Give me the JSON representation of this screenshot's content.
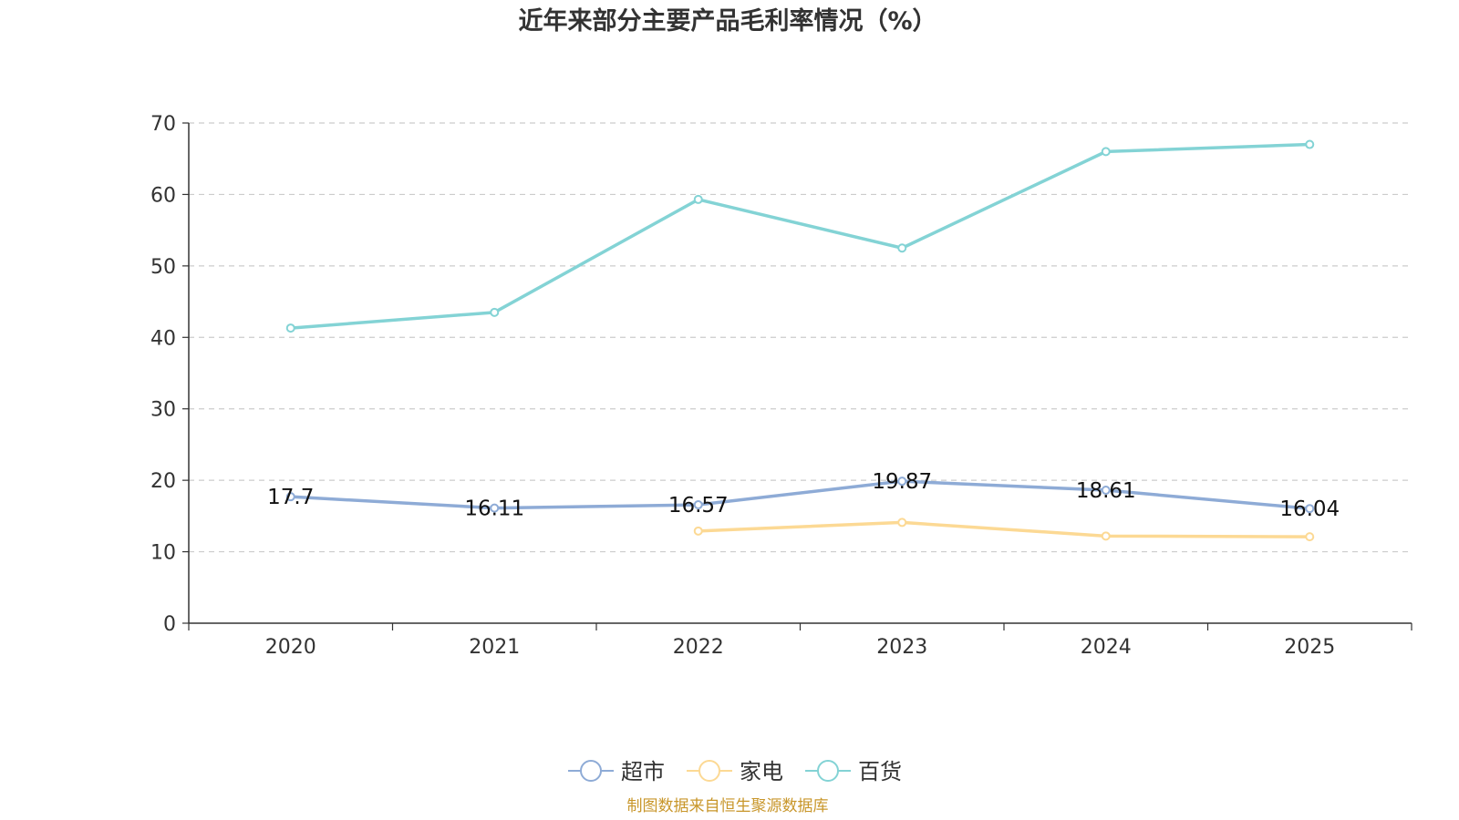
{
  "chart_data": {
    "type": "line",
    "title": "近年来部分主要产品毛利率情况（%）",
    "categories": [
      "2020",
      "2021",
      "2022",
      "2023",
      "2024",
      "2025"
    ],
    "ylim": [
      0,
      70
    ],
    "yticks": [
      "0",
      "10",
      "20",
      "30",
      "40",
      "50",
      "60",
      "70"
    ],
    "xlabel": "",
    "ylabel": "",
    "grid": "horizontal-dashed",
    "legend_position": "bottom-center",
    "series": [
      {
        "name": "超市",
        "color": "#8eabd6",
        "values": [
          17.7,
          16.11,
          16.57,
          19.87,
          18.61,
          16.04
        ],
        "labels": [
          "17.7",
          "16.11",
          "16.57",
          "19.87",
          "18.61",
          "16.04"
        ]
      },
      {
        "name": "家电",
        "color": "#fcd994",
        "values": [
          null,
          null,
          12.9,
          14.1,
          12.2,
          12.1
        ],
        "labels": []
      },
      {
        "name": "百货",
        "color": "#83d3d5",
        "values": [
          41.3,
          43.5,
          59.3,
          52.5,
          66.0,
          67.0
        ],
        "labels": []
      }
    ]
  },
  "source_note": "制图数据来自恒生聚源数据库",
  "source_color": "#c8962a"
}
